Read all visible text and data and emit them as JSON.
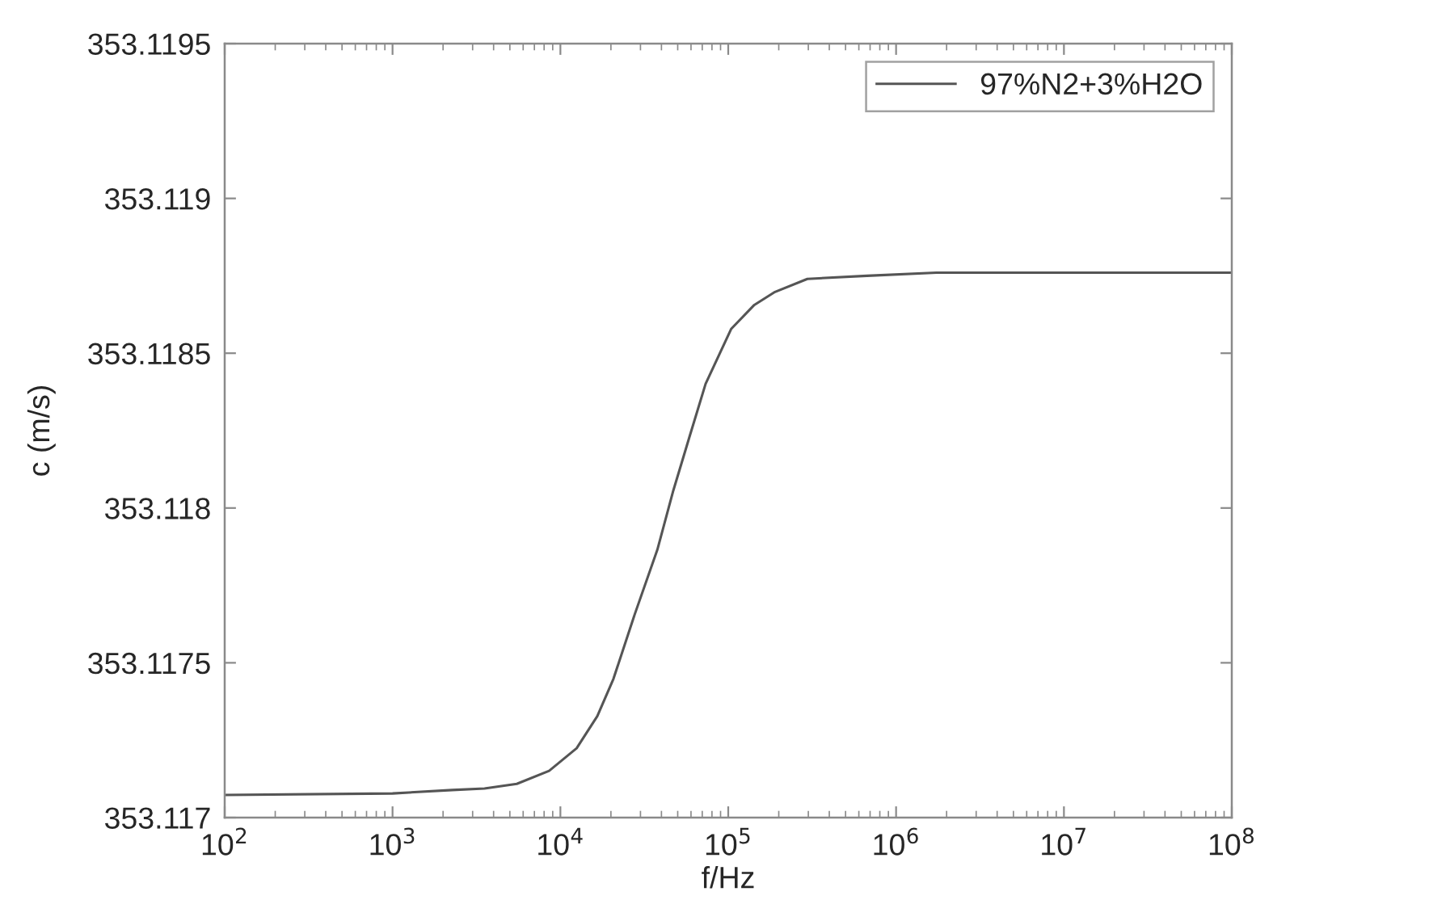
{
  "chart_data": {
    "type": "line",
    "xlabel": "f/Hz",
    "ylabel": "c (m/s)",
    "x": [
      100,
      1000,
      2270,
      3530,
      5500,
      8570,
      12500,
      16600,
      20700,
      27700,
      37800,
      47100,
      58700,
      73300,
      104000,
      143000,
      190000,
      296000,
      671000,
      1740000,
      10000000,
      100000000
    ],
    "series": [
      {
        "name": "97%N2+3%H2O",
        "color": "#555555",
        "values": [
          353.117073,
          353.117078,
          353.117089,
          353.117094,
          353.117109,
          353.117151,
          353.117224,
          353.117328,
          353.117448,
          353.117656,
          353.117865,
          353.118057,
          353.118229,
          353.118401,
          353.118578,
          353.118656,
          353.118698,
          353.11874,
          353.11875,
          353.11876,
          353.11876,
          353.11876
        ]
      }
    ],
    "log": "x",
    "xlim": [
      100,
      100000000
    ],
    "ylim": [
      353.117,
      353.1195
    ],
    "xticks": [
      {
        "value": 100,
        "label": "10$^{2}$"
      },
      {
        "value": 1000,
        "label": "10$^{3}$"
      },
      {
        "value": 10000,
        "label": "10$^{4}$"
      },
      {
        "value": 100000,
        "label": "10$^{5}$"
      },
      {
        "value": 1000000,
        "label": "10$^{6}$"
      },
      {
        "value": 10000000,
        "label": "10$^{7}$"
      },
      {
        "value": 100000000,
        "label": "10$^{8}$"
      }
    ],
    "yticks": [
      353.117,
      353.1175,
      353.118,
      353.1185,
      353.119,
      353.1195
    ],
    "legend": "top right",
    "line_style": "solid"
  }
}
